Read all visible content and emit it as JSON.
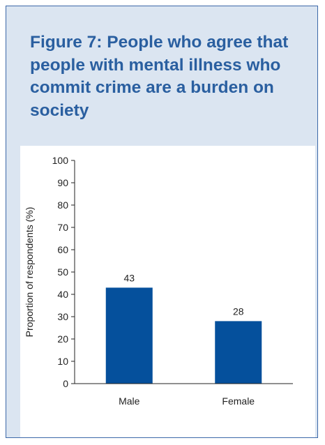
{
  "title": "Figure 7: People who agree that people with mental illness who commit crime are a burden on society",
  "colors": {
    "bar": "#05509c",
    "title": "#2a5fa0",
    "panel_bg": "#dbe5f1",
    "panel_border": "#3c68a8"
  },
  "chart_data": {
    "type": "bar",
    "title": "Figure 7: People who agree that people with mental illness who commit crime are a burden on society",
    "categories": [
      "Male",
      "Female"
    ],
    "values": [
      43,
      28
    ],
    "data_labels": [
      "43",
      "28"
    ],
    "xlabel": "",
    "ylabel": "Proportion of respondents (%)",
    "ylim": [
      0,
      100
    ],
    "yticks": [
      "0",
      "10",
      "20",
      "30",
      "40",
      "50",
      "60",
      "70",
      "80",
      "90",
      "100"
    ],
    "grid": false,
    "legend": "none"
  }
}
